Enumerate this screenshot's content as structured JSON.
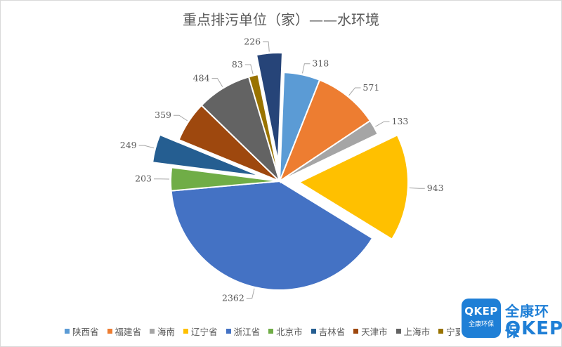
{
  "title": "重点排污单位（家）——水环境",
  "chart_data": {
    "type": "pie",
    "title": "重点排污单位（家）——水环境",
    "legend_position": "bottom",
    "slices": [
      {
        "label": "陕西省",
        "value": 318,
        "color": "#5b9bd5",
        "exploded": false
      },
      {
        "label": "福建省",
        "value": 571,
        "color": "#ed7d31",
        "exploded": false
      },
      {
        "label": "海南",
        "value": 133,
        "color": "#a5a5a5",
        "exploded": false
      },
      {
        "label": "辽宁省",
        "value": 943,
        "color": "#ffc000",
        "exploded": true
      },
      {
        "label": "浙江省",
        "value": 2362,
        "color": "#4472c4",
        "exploded": false
      },
      {
        "label": "北京市",
        "value": 203,
        "color": "#70ad47",
        "exploded": false
      },
      {
        "label": "吉林省",
        "value": 249,
        "color": "#255e91",
        "exploded": true
      },
      {
        "label": "天津市",
        "value": 359,
        "color": "#9e480e",
        "exploded": false
      },
      {
        "label": "上海市",
        "value": 484,
        "color": "#636363",
        "exploded": false
      },
      {
        "label": "宁夏",
        "value": 83,
        "color": "#997300",
        "exploded": false
      },
      {
        "label": "",
        "value": 226,
        "color": "#264478",
        "exploded": true
      }
    ]
  },
  "legend_visible": [
    "陕西省",
    "福建省",
    "海南",
    "辽宁省",
    "浙江省",
    "北京市",
    "吉林省",
    "天津市",
    "上海市",
    "宁夏"
  ],
  "logo": {
    "badge_main": "QKEP",
    "badge_sub": "全康环保",
    "name_cn": "全康环保",
    "name_en": "QKEP"
  }
}
